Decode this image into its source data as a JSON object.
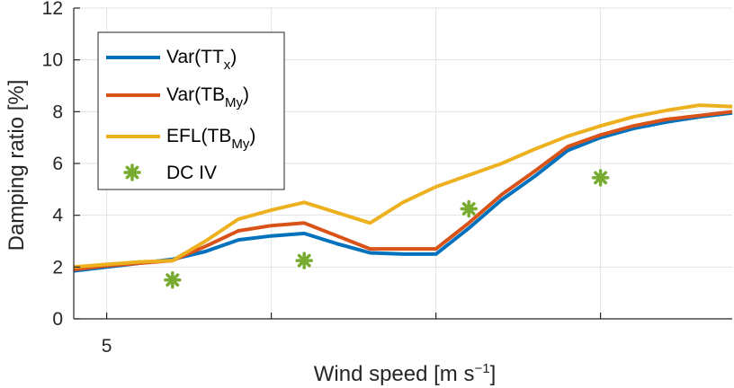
{
  "chart_data": {
    "type": "line",
    "xlabel": "Wind speed [m s",
    "xlabel_sup": "−1",
    "xlabel_end": "]",
    "ylabel": "Damping ratio [%]",
    "xlim": [
      4,
      24
    ],
    "ylim": [
      0,
      12
    ],
    "xticks": [
      5,
      10,
      15,
      20
    ],
    "xtick_labels": [
      "5",
      "",
      "",
      ""
    ],
    "yticks": [
      0,
      2,
      4,
      6,
      8,
      10,
      12
    ],
    "ytick_labels": [
      "0",
      "2",
      "4",
      "6",
      "8",
      "10",
      "12"
    ],
    "grid": true,
    "legend_position": "top-left",
    "series": [
      {
        "name": "Var(TT",
        "name_sub": "x",
        "name_end": ")",
        "color": "#0072BD",
        "x": [
          4,
          5,
          6,
          7,
          8,
          9,
          10,
          11,
          12,
          13,
          14,
          15,
          16,
          17,
          18,
          19,
          20,
          21,
          22,
          23,
          24
        ],
        "y": [
          1.85,
          2.0,
          2.15,
          2.3,
          2.6,
          3.05,
          3.2,
          3.3,
          2.9,
          2.55,
          2.5,
          2.5,
          3.5,
          4.6,
          5.5,
          6.5,
          7.0,
          7.35,
          7.6,
          7.8,
          7.95
        ]
      },
      {
        "name": "Var(TB",
        "name_sub": "My",
        "name_end": ")",
        "color": "#D95319",
        "x": [
          4,
          5,
          6,
          7,
          8,
          9,
          10,
          11,
          12,
          13,
          14,
          15,
          16,
          17,
          18,
          19,
          20,
          21,
          22,
          23,
          24
        ],
        "y": [
          1.9,
          2.05,
          2.15,
          2.25,
          2.8,
          3.4,
          3.6,
          3.7,
          3.2,
          2.7,
          2.7,
          2.7,
          3.7,
          4.8,
          5.7,
          6.65,
          7.1,
          7.45,
          7.7,
          7.85,
          8.0
        ]
      },
      {
        "name": "EFL(TB",
        "name_sub": "My",
        "name_end": ")",
        "color": "#EDB120",
        "x": [
          4,
          5,
          6,
          7,
          8,
          9,
          10,
          11,
          12,
          13,
          14,
          15,
          16,
          17,
          18,
          19,
          20,
          21,
          22,
          23,
          24
        ],
        "y": [
          2.0,
          2.1,
          2.2,
          2.25,
          3.0,
          3.85,
          4.2,
          4.5,
          4.1,
          3.7,
          4.5,
          5.1,
          5.55,
          6.0,
          6.55,
          7.05,
          7.45,
          7.8,
          8.05,
          8.25,
          8.2
        ]
      }
    ],
    "scatter": {
      "name": "DC IV",
      "color": "#77AC30",
      "x": [
        7,
        11,
        16,
        20
      ],
      "y": [
        1.5,
        2.25,
        4.25,
        5.45
      ]
    }
  }
}
